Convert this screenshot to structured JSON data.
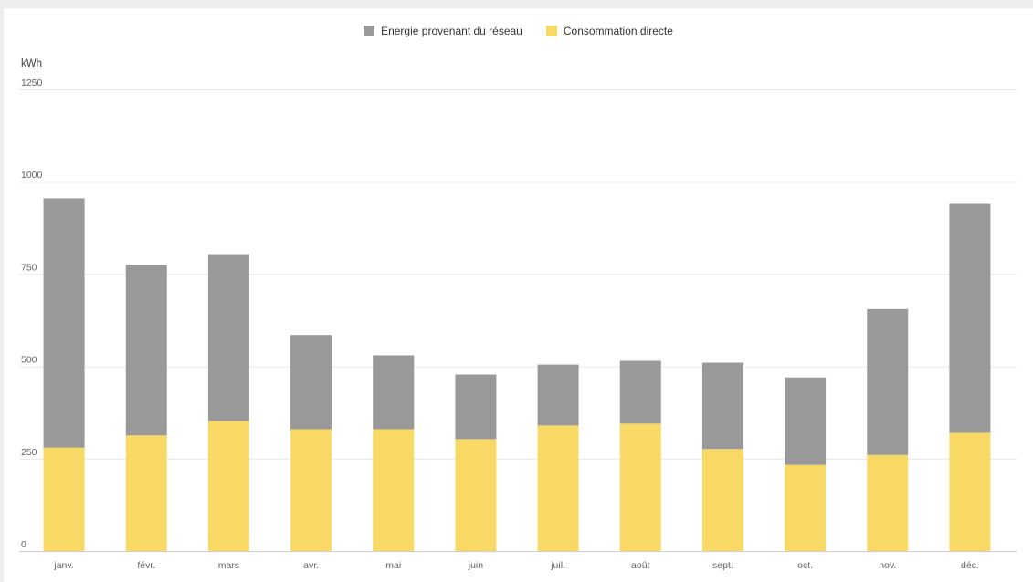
{
  "chart_data": {
    "type": "bar",
    "stacked": true,
    "categories": [
      "janv.",
      "févr.",
      "mars",
      "avr.",
      "mai",
      "juin",
      "juil.",
      "août",
      "sept.",
      "oct.",
      "nov.",
      "déc."
    ],
    "series": [
      {
        "name": "Consommation directe",
        "color": "#f9d966",
        "values": [
          280,
          313,
          352,
          330,
          330,
          303,
          340,
          345,
          276,
          233,
          260,
          320
        ]
      },
      {
        "name": "Énergie provenant du réseau",
        "color": "#999999",
        "values": [
          675,
          462,
          452,
          255,
          200,
          175,
          165,
          170,
          234,
          237,
          395,
          620
        ]
      }
    ],
    "legend_order": [
      "Énergie provenant du réseau",
      "Consommation directe"
    ],
    "ylabel": "kWh",
    "ylim": [
      0,
      1250
    ],
    "yticks": [
      0,
      250,
      500,
      750,
      1000,
      1250
    ],
    "grid": true,
    "legend_position": "top-center"
  }
}
